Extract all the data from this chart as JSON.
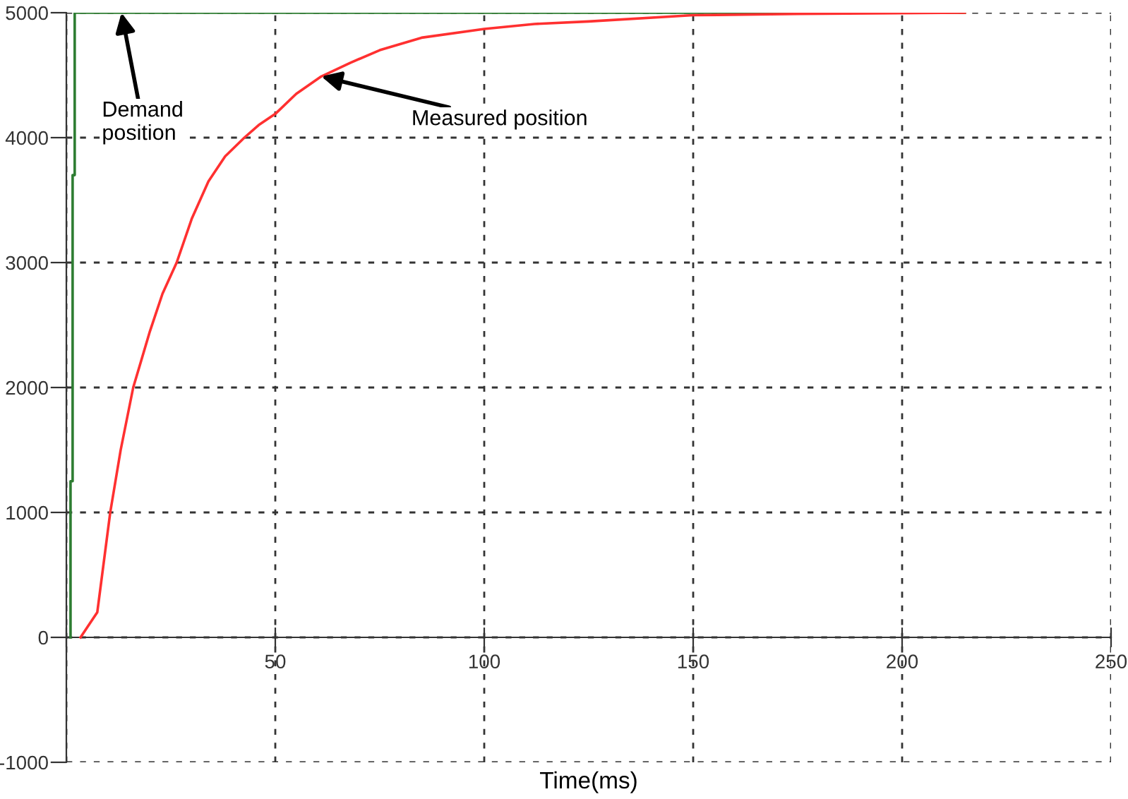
{
  "chart_data": {
    "type": "line",
    "xlabel": "Time(ms)",
    "xlim": [
      0,
      250
    ],
    "ylim": [
      -1000,
      5000
    ],
    "xticks": [
      {
        "value": 0,
        "label": null
      },
      50,
      100,
      150,
      200,
      250
    ],
    "yticks": [
      -1000,
      0,
      1000,
      2000,
      3000,
      4000,
      5000
    ],
    "grid": true,
    "line_style": "solid",
    "series": [
      {
        "color": "#2e7d32",
        "x": [
          1,
          1,
          1.5,
          1.5,
          2,
          2,
          215
        ],
        "values": [
          0,
          1250,
          1250,
          3700,
          3700,
          5000,
          5000
        ]
      },
      {
        "color": "#ff3030",
        "x": [
          3.4,
          5,
          7.4,
          10.5,
          13,
          16,
          20,
          23,
          26.4,
          30,
          34,
          38,
          42.6,
          46,
          50,
          55,
          61,
          68,
          75,
          85,
          100,
          112,
          125,
          150,
          175,
          215
        ],
        "values": [
          0,
          80,
          200,
          1000,
          1500,
          2000,
          2450,
          2750,
          3000,
          3350,
          3650,
          3850,
          4000,
          4100,
          4190,
          4350,
          4490,
          4600,
          4700,
          4800,
          4870,
          4910,
          4930,
          4980,
          4990,
          5000
        ]
      }
    ],
    "annotations": [
      {
        "text": "Demand\nposition",
        "x": 13.2,
        "y": 5000
      },
      {
        "text": "Measured position",
        "x": 61,
        "y": 4490
      }
    ]
  }
}
